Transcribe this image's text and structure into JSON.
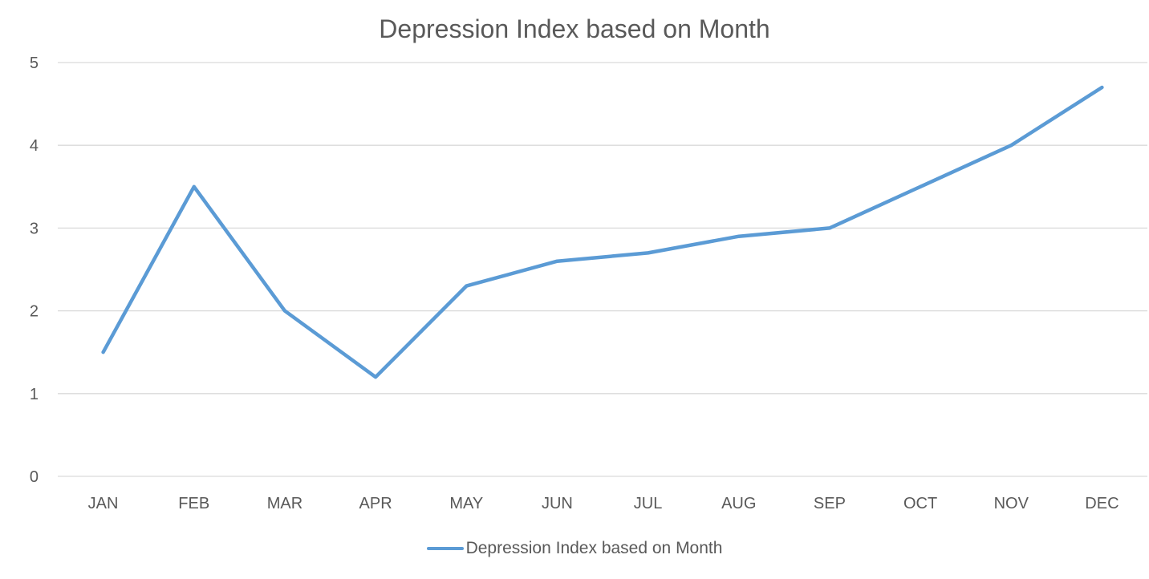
{
  "chart_data": {
    "type": "line",
    "title": "Depression Index based on Month",
    "xlabel": "",
    "ylabel": "",
    "categories": [
      "JAN",
      "FEB",
      "MAR",
      "APR",
      "MAY",
      "JUN",
      "JUL",
      "AUG",
      "SEP",
      "OCT",
      "NOV",
      "DEC"
    ],
    "series": [
      {
        "name": "Depression Index based on Month",
        "values": [
          1.5,
          3.5,
          2.0,
          1.2,
          2.3,
          2.6,
          2.7,
          2.9,
          3.0,
          3.5,
          4.0,
          4.7
        ],
        "color": "#5b9bd5"
      }
    ],
    "ylim": [
      0,
      5
    ],
    "yticks": [
      0,
      1,
      2,
      3,
      4,
      5
    ],
    "grid": true,
    "gridColor": "#d9d9d9",
    "legend_position": "bottom"
  }
}
